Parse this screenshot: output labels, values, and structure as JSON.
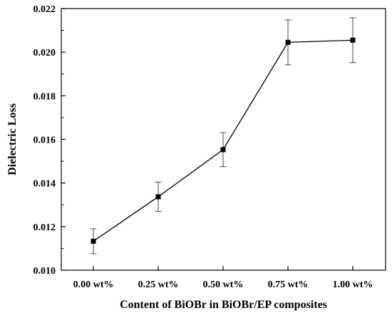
{
  "chart_data": {
    "type": "line",
    "title": "",
    "xlabel": "Content of BiOBr in BiOBr/EP composites",
    "ylabel": "Dielectric Loss",
    "categories": [
      "0.00 wt%",
      "0.25 wt%",
      "0.50 wt%",
      "0.75 wt%",
      "1.00 wt%"
    ],
    "ylim": [
      0.01,
      0.022
    ],
    "yticks": [
      "0.010",
      "0.012",
      "0.014",
      "0.016",
      "0.018",
      "0.020",
      "0.022"
    ],
    "series": [
      {
        "values": [
          0.01133,
          0.01337,
          0.01553,
          0.02045,
          0.02055
        ],
        "errors": [
          0.00057,
          0.00067,
          0.00078,
          0.00103,
          0.00103
        ]
      }
    ],
    "marker": "square",
    "grid": false,
    "legend": "none",
    "colors": {
      "line": "#000000",
      "marker": "#000000",
      "background": "#ffffff"
    }
  }
}
